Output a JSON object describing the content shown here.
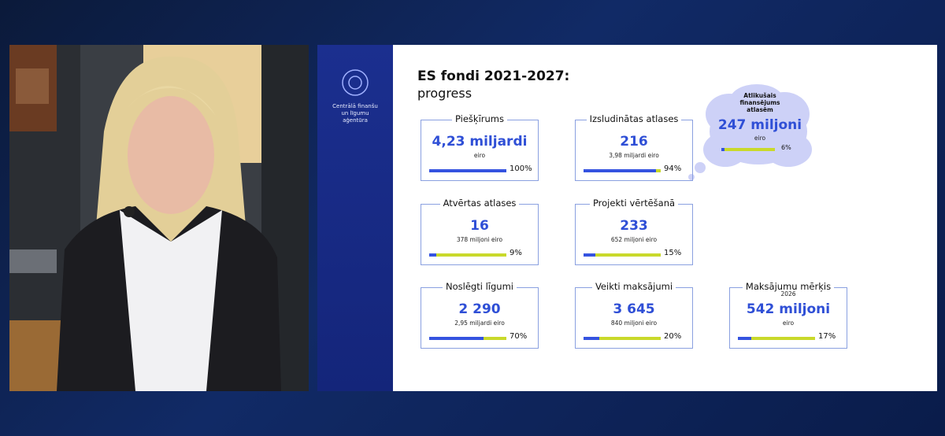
{
  "agency": "Centrālā finanšu un līgumu aģentūra",
  "slide": {
    "title": "ES fondi 2021-2027:",
    "subtitle": "progress",
    "cards": [
      {
        "title": "Piešķīrums",
        "value": "4,23 miljardi",
        "note": "eiro",
        "progress": {
          "value": 100,
          "label": "100%"
        }
      },
      {
        "title": "Izsludinātas atlases",
        "value": "216",
        "note": "3,98 miljardi eiro",
        "progress": {
          "value": 94,
          "label": "94%"
        }
      },
      {
        "title": "Atvērtas atlases",
        "value": "16",
        "note": "378 miljoni eiro",
        "progress": {
          "value": 9,
          "label": "9%"
        }
      },
      {
        "title": "Projekti vērtēšanā",
        "value": "233",
        "note": "652 miljoni eiro",
        "progress": {
          "value": 15,
          "label": "15%"
        }
      },
      {
        "title": "Noslēgti līgumi",
        "value": "2 290",
        "note": "2,95 miljardi eiro",
        "progress": {
          "value": 70,
          "label": "70%"
        }
      },
      {
        "title": "Veikti maksājumi",
        "value": "3 645",
        "note": "840 miljoni eiro",
        "progress": {
          "value": 20,
          "label": "20%"
        }
      },
      {
        "title": "Maksājumu mērķis",
        "year": "2026",
        "value": "542 miljoni",
        "note": "eiro",
        "progress": {
          "value": 17,
          "label": "17%"
        }
      }
    ],
    "cloud": {
      "title": "Atlikušais finansējums atlasēm",
      "value": "247 miljoni",
      "note": "eiro",
      "progress": {
        "value": 6,
        "label": "6%"
      }
    }
  }
}
